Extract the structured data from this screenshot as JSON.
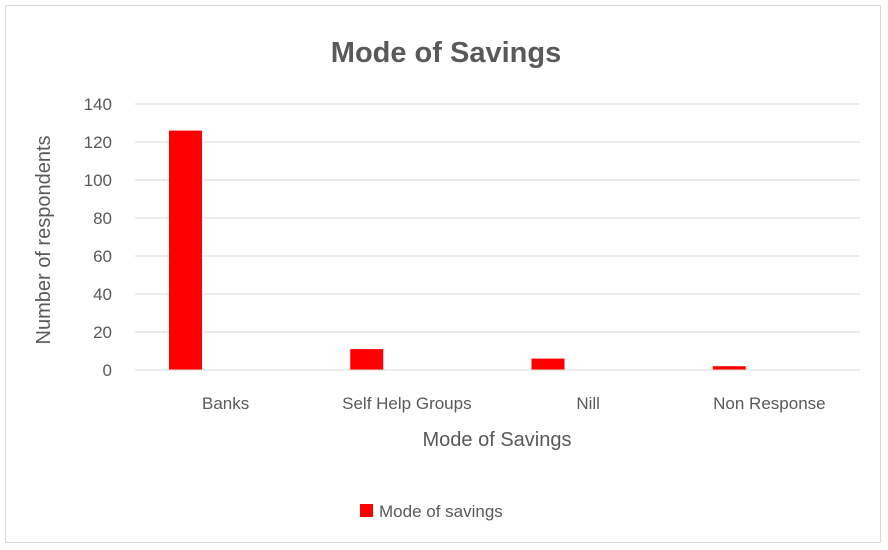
{
  "chart_data": {
    "type": "bar",
    "title": "Mode of Savings",
    "xlabel": "Mode of Savings",
    "ylabel": "Number of respondents",
    "categories": [
      "Banks",
      "Self Help Groups",
      "Nill",
      "Non Response"
    ],
    "series": [
      {
        "name": "Mode of savings",
        "values": [
          126,
          11,
          6,
          2
        ],
        "color": "#ff0000"
      }
    ],
    "ylim": [
      0,
      140
    ],
    "yticks": [
      "0",
      "20",
      "40",
      "60",
      "80",
      "100",
      "120",
      "140"
    ],
    "grid": true,
    "legend_position": "bottom"
  }
}
